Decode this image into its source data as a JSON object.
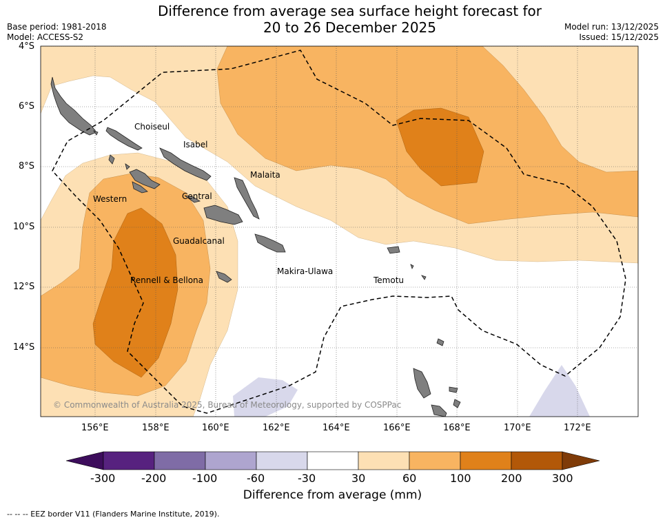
{
  "title": {
    "line1": "Difference from average sea surface height forecast for",
    "line2": "20 to 26 December 2025"
  },
  "meta": {
    "base_period": "Base period: 1981-2018",
    "model": "Model: ACCESS-S2",
    "model_run": "Model run: 13/12/2025",
    "issued": "Issued: 15/12/2025"
  },
  "lat_labels": [
    "4°S",
    "6°S",
    "8°S",
    "10°S",
    "12°S",
    "14°S"
  ],
  "lon_labels": [
    "156°E",
    "158°E",
    "160°E",
    "162°E",
    "164°E",
    "166°E",
    "168°E",
    "170°E",
    "172°E"
  ],
  "regions": [
    {
      "name": "Choiseul"
    },
    {
      "name": "Isabel"
    },
    {
      "name": "Malaita"
    },
    {
      "name": "Western"
    },
    {
      "name": "Central"
    },
    {
      "name": "Guadalcanal"
    },
    {
      "name": "Rennell & Bellona"
    },
    {
      "name": "Makira-Ulawa"
    },
    {
      "name": "Temotu"
    }
  ],
  "copyright": "© Commonwealth of Australia 2025, Bureau of Meteorology, supported by COSPPac",
  "colorbar": {
    "title": "Difference from average (mm)",
    "ticks": [
      "-300",
      "-200",
      "-100",
      "-60",
      "-30",
      "30",
      "60",
      "100",
      "200",
      "300"
    ],
    "colors": [
      "#3d0d5c",
      "#57227f",
      "#7f6ca6",
      "#aea5cf",
      "#d8d8eb",
      "#ffffff",
      "#fde0b4",
      "#f8b461",
      "#e0811a",
      "#b25808",
      "#7f3b08"
    ]
  },
  "legend_note": "-- -- -- EEZ border V11 (Flanders Marine Institute, 2019)."
}
